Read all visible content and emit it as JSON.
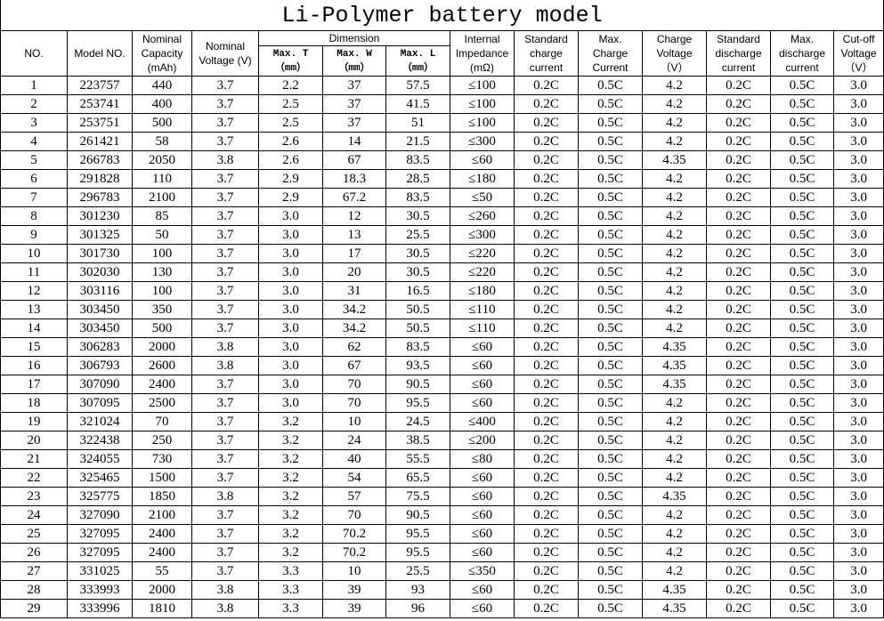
{
  "title": "Li-Polymer battery model",
  "header": {
    "left": [
      {
        "lines": [
          "NO."
        ]
      },
      {
        "lines": [
          "Model NO."
        ]
      },
      {
        "lines": [
          "Nominal",
          "Capacity",
          "(mAh)"
        ]
      },
      {
        "lines": [
          "Nominal",
          "Voltage (V)"
        ]
      }
    ],
    "dimension": {
      "label": "Dimension",
      "columns": [
        {
          "lines": [
            "Max. T",
            "（mm）"
          ]
        },
        {
          "lines": [
            "Max. W",
            "（mm）"
          ]
        },
        {
          "lines": [
            "Max. L",
            "（mm）"
          ]
        }
      ]
    },
    "right": [
      {
        "lines": [
          "Internal",
          "Impedance",
          "(mΩ)"
        ]
      },
      {
        "lines": [
          "Standard",
          "charge",
          "current"
        ]
      },
      {
        "lines": [
          "Max.",
          "Charge",
          "Current"
        ]
      },
      {
        "lines": [
          "Charge",
          "Voltage",
          "（V）"
        ]
      },
      {
        "lines": [
          "Standard",
          "discharge",
          "current"
        ]
      },
      {
        "lines": [
          "Max.",
          "discharge",
          "current"
        ]
      },
      {
        "lines": [
          "Cut-off",
          "Voltage",
          "（V）"
        ]
      }
    ]
  },
  "rows": [
    [
      "1",
      "223757",
      "440",
      "3.7",
      "2.2",
      "37",
      "57.5",
      "≤100",
      "0.2C",
      "0.5C",
      "4.2",
      "0.2C",
      "0.5C",
      "3.0"
    ],
    [
      "2",
      "253741",
      "400",
      "3.7",
      "2.5",
      "37",
      "41.5",
      "≤100",
      "0.2C",
      "0.5C",
      "4.2",
      "0.2C",
      "0.5C",
      "3.0"
    ],
    [
      "3",
      "253751",
      "500",
      "3.7",
      "2.5",
      "37",
      "51",
      "≤100",
      "0.2C",
      "0.5C",
      "4.2",
      "0.2C",
      "0.5C",
      "3.0"
    ],
    [
      "4",
      "261421",
      "58",
      "3.7",
      "2.6",
      "14",
      "21.5",
      "≤300",
      "0.2C",
      "0.5C",
      "4.2",
      "0.2C",
      "0.5C",
      "3.0"
    ],
    [
      "5",
      "266783",
      "2050",
      "3.8",
      "2.6",
      "67",
      "83.5",
      "≤60",
      "0.2C",
      "0.5C",
      "4.35",
      "0.2C",
      "0.5C",
      "3.0"
    ],
    [
      "6",
      "291828",
      "110",
      "3.7",
      "2.9",
      "18.3",
      "28.5",
      "≤180",
      "0.2C",
      "0.5C",
      "4.2",
      "0.2C",
      "0.5C",
      "3.0"
    ],
    [
      "7",
      "296783",
      "2100",
      "3.7",
      "2.9",
      "67.2",
      "83.5",
      "≤50",
      "0.2C",
      "0.5C",
      "4.2",
      "0.2C",
      "0.5C",
      "3.0"
    ],
    [
      "8",
      "301230",
      "85",
      "3.7",
      "3.0",
      "12",
      "30.5",
      "≤260",
      "0.2C",
      "0.5C",
      "4.2",
      "0.2C",
      "0.5C",
      "3.0"
    ],
    [
      "9",
      "301325",
      "50",
      "3.7",
      "3.0",
      "13",
      "25.5",
      "≤300",
      "0.2C",
      "0.5C",
      "4.2",
      "0.2C",
      "0.5C",
      "3.0"
    ],
    [
      "10",
      "301730",
      "100",
      "3.7",
      "3.0",
      "17",
      "30.5",
      "≤220",
      "0.2C",
      "0.5C",
      "4.2",
      "0.2C",
      "0.5C",
      "3.0"
    ],
    [
      "11",
      "302030",
      "130",
      "3.7",
      "3.0",
      "20",
      "30.5",
      "≤220",
      "0.2C",
      "0.5C",
      "4.2",
      "0.2C",
      "0.5C",
      "3.0"
    ],
    [
      "12",
      "303116",
      "100",
      "3.7",
      "3.0",
      "31",
      "16.5",
      "≤180",
      "0.2C",
      "0.5C",
      "4.2",
      "0.2C",
      "0.5C",
      "3.0"
    ],
    [
      "13",
      "303450",
      "350",
      "3.7",
      "3.0",
      "34.2",
      "50.5",
      "≤110",
      "0.2C",
      "0.5C",
      "4.2",
      "0.2C",
      "0.5C",
      "3.0"
    ],
    [
      "14",
      "303450",
      "500",
      "3.7",
      "3.0",
      "34.2",
      "50.5",
      "≤110",
      "0.2C",
      "0.5C",
      "4.2",
      "0.2C",
      "0.5C",
      "3.0"
    ],
    [
      "15",
      "306283",
      "2000",
      "3.8",
      "3.0",
      "62",
      "83.5",
      "≤60",
      "0.2C",
      "0.5C",
      "4.35",
      "0.2C",
      "0.5C",
      "3.0"
    ],
    [
      "16",
      "306793",
      "2600",
      "3.8",
      "3.0",
      "67",
      "93.5",
      "≤60",
      "0.2C",
      "0.5C",
      "4.35",
      "0.2C",
      "0.5C",
      "3.0"
    ],
    [
      "17",
      "307090",
      "2400",
      "3.7",
      "3.0",
      "70",
      "90.5",
      "≤60",
      "0.2C",
      "0.5C",
      "4.35",
      "0.2C",
      "0.5C",
      "3.0"
    ],
    [
      "18",
      "307095",
      "2500",
      "3.7",
      "3.0",
      "70",
      "95.5",
      "≤60",
      "0.2C",
      "0.5C",
      "4.2",
      "0.2C",
      "0.5C",
      "3.0"
    ],
    [
      "19",
      "321024",
      "70",
      "3.7",
      "3.2",
      "10",
      "24.5",
      "≤400",
      "0.2C",
      "0.5C",
      "4.2",
      "0.2C",
      "0.5C",
      "3.0"
    ],
    [
      "20",
      "322438",
      "250",
      "3.7",
      "3.2",
      "24",
      "38.5",
      "≤200",
      "0.2C",
      "0.5C",
      "4.2",
      "0.2C",
      "0.5C",
      "3.0"
    ],
    [
      "21",
      "324055",
      "730",
      "3.7",
      "3.2",
      "40",
      "55.5",
      "≤80",
      "0.2C",
      "0.5C",
      "4.2",
      "0.2C",
      "0.5C",
      "3.0"
    ],
    [
      "22",
      "325465",
      "1500",
      "3.7",
      "3.2",
      "54",
      "65.5",
      "≤60",
      "0.2C",
      "0.5C",
      "4.2",
      "0.2C",
      "0.5C",
      "3.0"
    ],
    [
      "23",
      "325775",
      "1850",
      "3.8",
      "3.2",
      "57",
      "75.5",
      "≤60",
      "0.2C",
      "0.5C",
      "4.35",
      "0.2C",
      "0.5C",
      "3.0"
    ],
    [
      "24",
      "327090",
      "2100",
      "3.7",
      "3.2",
      "70",
      "90.5",
      "≤60",
      "0.2C",
      "0.5C",
      "4.2",
      "0.2C",
      "0.5C",
      "3.0"
    ],
    [
      "25",
      "327095",
      "2400",
      "3.7",
      "3.2",
      "70.2",
      "95.5",
      "≤60",
      "0.2C",
      "0.5C",
      "4.2",
      "0.2C",
      "0.5C",
      "3.0"
    ],
    [
      "26",
      "327095",
      "2400",
      "3.7",
      "3.2",
      "70.2",
      "95.5",
      "≤60",
      "0.2C",
      "0.5C",
      "4.2",
      "0.2C",
      "0.5C",
      "3.0"
    ],
    [
      "27",
      "331025",
      "55",
      "3.7",
      "3.3",
      "10",
      "25.5",
      "≤350",
      "0.2C",
      "0.5C",
      "4.2",
      "0.2C",
      "0.5C",
      "3.0"
    ],
    [
      "28",
      "333993",
      "2000",
      "3.8",
      "3.3",
      "39",
      "93",
      "≤60",
      "0.2C",
      "0.5C",
      "4.35",
      "0.2C",
      "0.5C",
      "3.0"
    ],
    [
      "29",
      "333996",
      "1810",
      "3.8",
      "3.3",
      "39",
      "96",
      "≤60",
      "0.2C",
      "0.5C",
      "4.35",
      "0.2C",
      "0.5C",
      "3.0"
    ]
  ]
}
